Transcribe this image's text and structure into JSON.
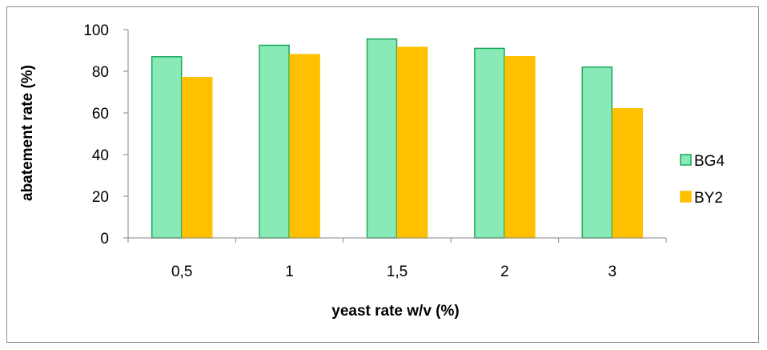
{
  "chart_data": {
    "type": "bar",
    "title": "",
    "xlabel": "yeast rate w/v (%)",
    "ylabel": "abatement rate (%)",
    "categories": [
      "0,5",
      "1",
      "1,5",
      "2",
      "3"
    ],
    "ylim": [
      0,
      100
    ],
    "yticks": [
      "0",
      "20",
      "40",
      "60",
      "80",
      "100"
    ],
    "grid": false,
    "legend_position": "right",
    "series": [
      {
        "name": "BG4",
        "values": [
          87,
          92.5,
          95.5,
          91,
          82
        ],
        "color": "#88ebb7",
        "stroke": "#1aa85a"
      },
      {
        "name": "BY2",
        "values": [
          77,
          88,
          91.5,
          87,
          62
        ],
        "color": "#ffc000",
        "stroke": "#ffc000"
      }
    ]
  }
}
